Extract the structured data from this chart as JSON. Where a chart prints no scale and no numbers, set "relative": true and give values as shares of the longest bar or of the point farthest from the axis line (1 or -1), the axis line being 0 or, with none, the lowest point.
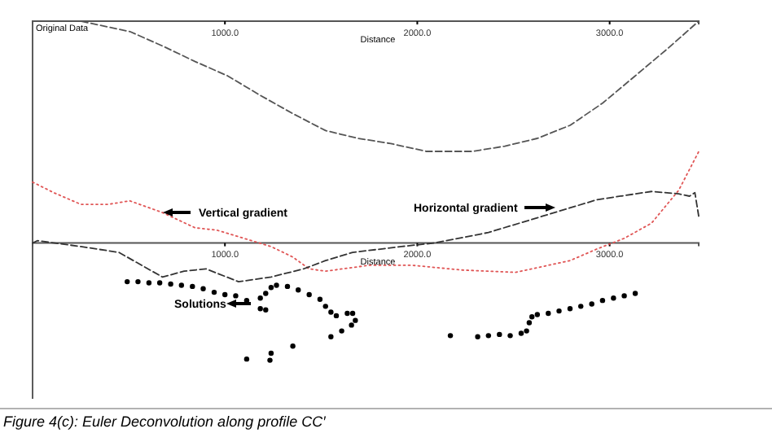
{
  "chart_data": [
    {
      "type": "line",
      "relative": true,
      "xlabel": "Distance",
      "xlim": [
        0,
        3463
      ],
      "xticks": [
        {
          "value": 1000,
          "label": "1000.0"
        },
        {
          "value": 2000,
          "label": "2000.0"
        },
        {
          "value": 3000,
          "label": "3000.0"
        }
      ],
      "annotations": [
        "Original Data"
      ],
      "series": [
        {
          "color": "#555555",
          "line_style": "dashed",
          "x": [
            0,
            251,
            506,
            675,
            845,
            1014,
            1184,
            1353,
            1523,
            1692,
            1862,
            2048,
            2285,
            2455,
            2624,
            2794,
            2963,
            3133,
            3302,
            3463
          ],
          "values": [
            1.0,
            1.0,
            0.92,
            0.81,
            0.69,
            0.58,
            0.43,
            0.29,
            0.16,
            0.1,
            0.06,
            0,
            0,
            0.04,
            0.1,
            0.2,
            0.37,
            0.58,
            0.79,
            1.0
          ]
        }
      ]
    },
    {
      "type": "line",
      "relative": true,
      "xlabel": "Distance",
      "xlim": [
        0,
        3463
      ],
      "xticks": [
        {
          "value": 1000,
          "label": "1000.0"
        },
        {
          "value": 2000,
          "label": "2000.0"
        },
        {
          "value": 3000,
          "label": "3000.0"
        }
      ],
      "annotations": [
        "Vertical gradient",
        "Horizontal gradient",
        "Solutions",
        "Figure 4(c): Euler Deconvolution along profile CC′"
      ],
      "series": [
        {
          "color": "#e05555",
          "line_style": "dotted",
          "x": [
            0,
            110,
            251,
            393,
            506,
            675,
            845,
            958,
            1099,
            1240,
            1353,
            1438,
            1523,
            1749,
            1975,
            2229,
            2511,
            2794,
            2935,
            3076,
            3218,
            3359,
            3463
          ],
          "values": [
            0.52,
            0.43,
            0.33,
            0.33,
            0.36,
            0.26,
            0.13,
            0.11,
            0.04,
            -0.03,
            -0.12,
            -0.22,
            -0.24,
            -0.19,
            -0.19,
            -0.23,
            -0.25,
            -0.15,
            -0.05,
            0.04,
            0.17,
            0.45,
            0.78
          ]
        },
        {
          "color": "#333333",
          "line_style": "dashed",
          "x": [
            0,
            25,
            251,
            449,
            675,
            788,
            901,
            1071,
            1240,
            1410,
            1523,
            1664,
            1918,
            2087,
            2370,
            2653,
            2935,
            3218,
            3359,
            3415,
            3443,
            3463
          ],
          "values": [
            0,
            0.02,
            -0.03,
            -0.08,
            -0.29,
            -0.24,
            -0.22,
            -0.33,
            -0.29,
            -0.22,
            -0.15,
            -0.08,
            -0.03,
            0,
            0.09,
            0.23,
            0.37,
            0.44,
            0.42,
            0.4,
            0.43,
            0.23
          ]
        },
        {
          "type": "scatter",
          "marker": "circle",
          "color": "#000000",
          "x": [
            492,
            548,
            605,
            661,
            718,
            774,
            831,
            887,
            944,
            1000,
            1056,
            1113,
            1184,
            1212,
            1240,
            1268,
            1325,
            1381,
            1438,
            1494,
            1523,
            1551,
            1579,
            1636,
            1664,
            1678,
            1658,
            1607,
            1551,
            1184,
            1212,
            1353,
            1240,
            1234,
            1113,
            2172,
            2314,
            2370,
            2427,
            2483,
            2540,
            2568,
            2582,
            2596,
            2624,
            2681,
            2737,
            2794,
            2850,
            2907,
            2963,
            3020,
            3076,
            3133
          ],
          "values": [
            -0.33,
            -0.33,
            -0.34,
            -0.34,
            -0.35,
            -0.36,
            -0.37,
            -0.39,
            -0.42,
            -0.44,
            -0.45,
            -0.49,
            -0.47,
            -0.43,
            -0.38,
            -0.36,
            -0.37,
            -0.4,
            -0.44,
            -0.48,
            -0.54,
            -0.59,
            -0.62,
            -0.6,
            -0.6,
            -0.66,
            -0.7,
            -0.75,
            -0.8,
            -0.56,
            -0.57,
            -0.88,
            -0.94,
            -1.0,
            -0.99,
            -0.79,
            -0.8,
            -0.79,
            -0.78,
            -0.79,
            -0.77,
            -0.75,
            -0.68,
            -0.63,
            -0.61,
            -0.6,
            -0.58,
            -0.56,
            -0.54,
            -0.52,
            -0.49,
            -0.47,
            -0.45,
            -0.43
          ]
        }
      ]
    }
  ]
}
